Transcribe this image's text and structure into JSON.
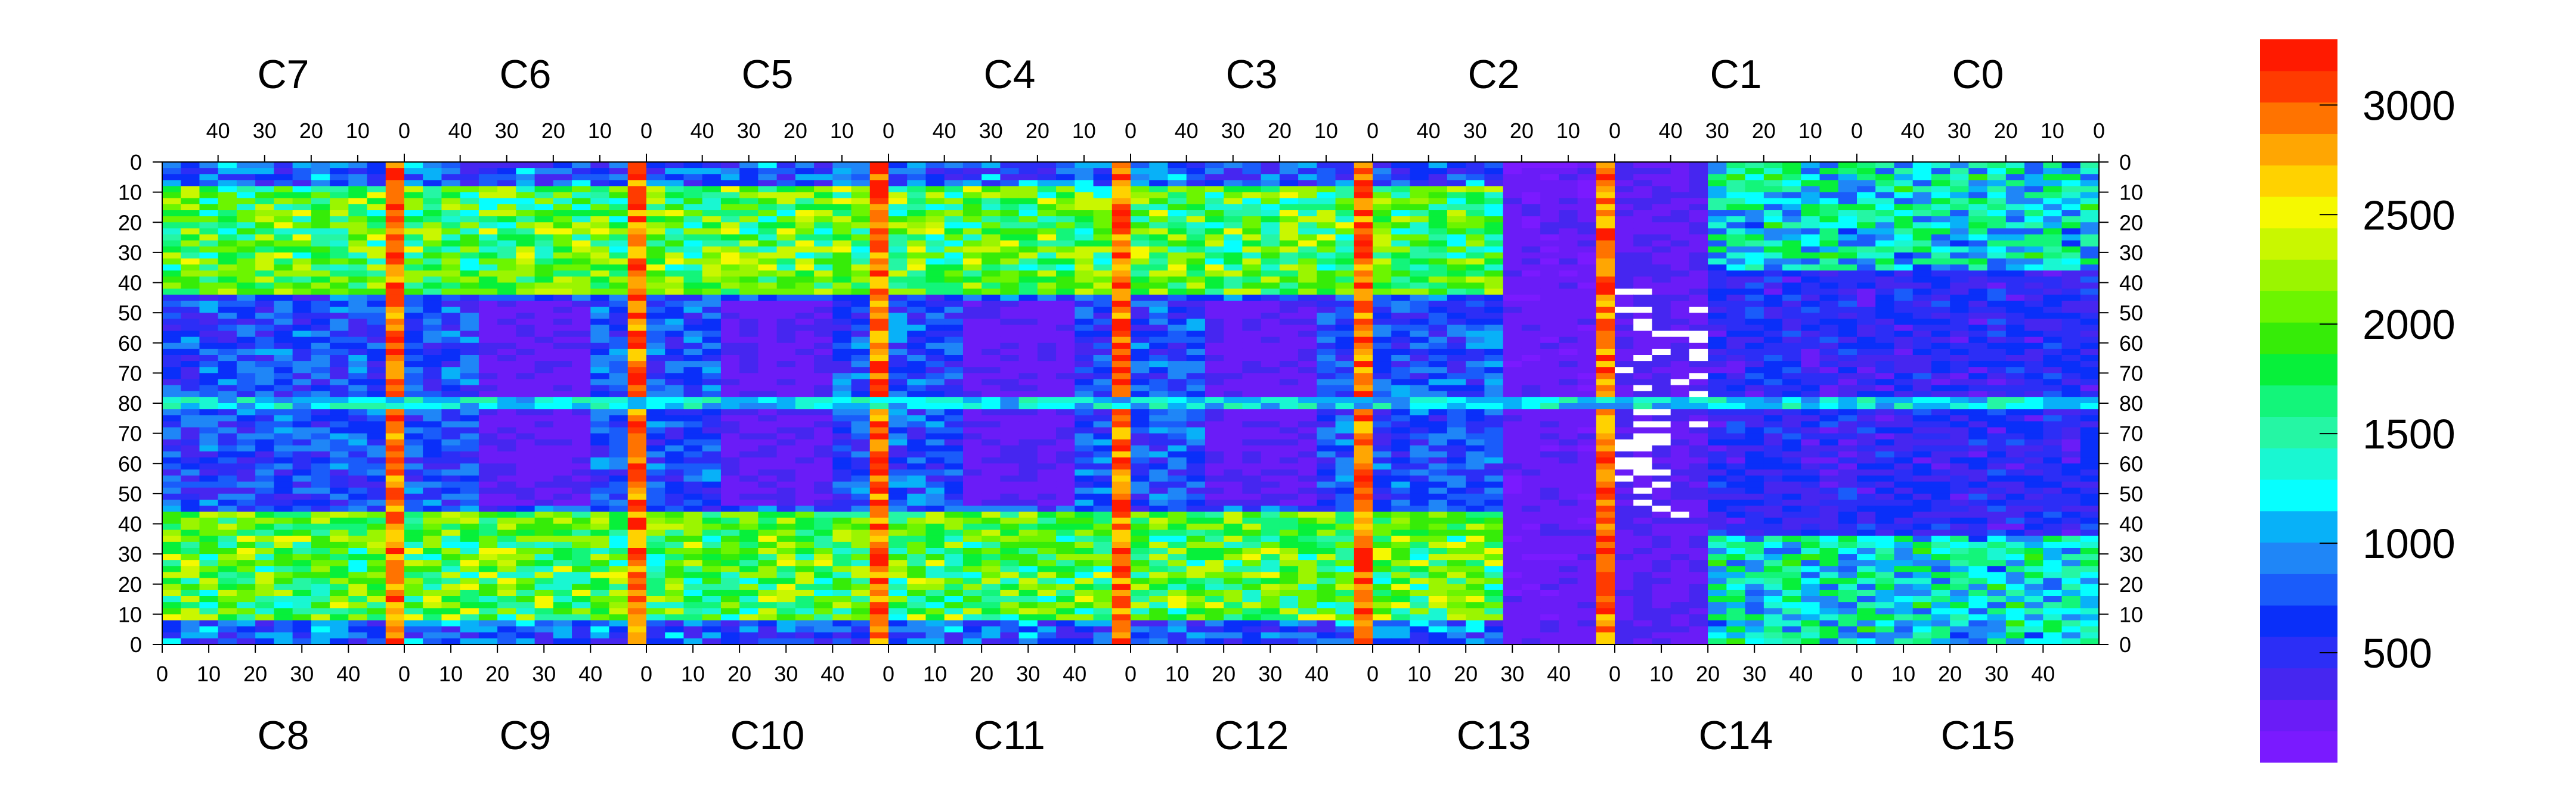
{
  "chart_data": {
    "type": "heatmap",
    "chips_top": [
      "C7",
      "C6",
      "C5",
      "C4",
      "C3",
      "C2",
      "C1",
      "C0"
    ],
    "chips_bottom": [
      "C8",
      "C9",
      "C10",
      "C11",
      "C12",
      "C13",
      "C14",
      "C15"
    ],
    "top_axis_ticks": [
      "40",
      "30",
      "20",
      "10",
      "0"
    ],
    "bottom_axis_ticks": [
      "0",
      "10",
      "20",
      "30",
      "40"
    ],
    "top_axis_last_tick": "0",
    "bottom_axis_last_tick": "",
    "left_axis_ticks": [
      "0",
      "10",
      "20",
      "30",
      "40",
      "50",
      "60",
      "70",
      "80",
      "70",
      "60",
      "50",
      "40",
      "30",
      "20",
      "10",
      "0"
    ],
    "right_axis_ticks": [
      "0",
      "10",
      "20",
      "30",
      "40",
      "50",
      "60",
      "70",
      "80",
      "70",
      "60",
      "50",
      "40",
      "30",
      "20",
      "10",
      "0"
    ],
    "chip_columns": 52,
    "chip_rows": 80,
    "colorbar": {
      "min": 0,
      "max": 3300,
      "tick_labels": [
        "500",
        "1000",
        "1500",
        "2000",
        "2500",
        "3000"
      ],
      "tick_values": [
        500,
        1000,
        1500,
        2000,
        2500,
        3000
      ],
      "colors": [
        "#7a1aff",
        "#6a1cf7",
        "#4626f0",
        "#2c2ef6",
        "#0a2ff9",
        "#1a5cfa",
        "#1f86f7",
        "#08b1f8",
        "#06ffff",
        "#19f7d2",
        "#25f6a4",
        "#13f57a",
        "#07f03a",
        "#36ec08",
        "#6cf500",
        "#9bf500",
        "#c9f700",
        "#f5f900",
        "#ffd200",
        "#ffa602",
        "#ff7300",
        "#ff3b00",
        "#ff1a00"
      ]
    },
    "legend_placement": "right",
    "grid": false
  }
}
